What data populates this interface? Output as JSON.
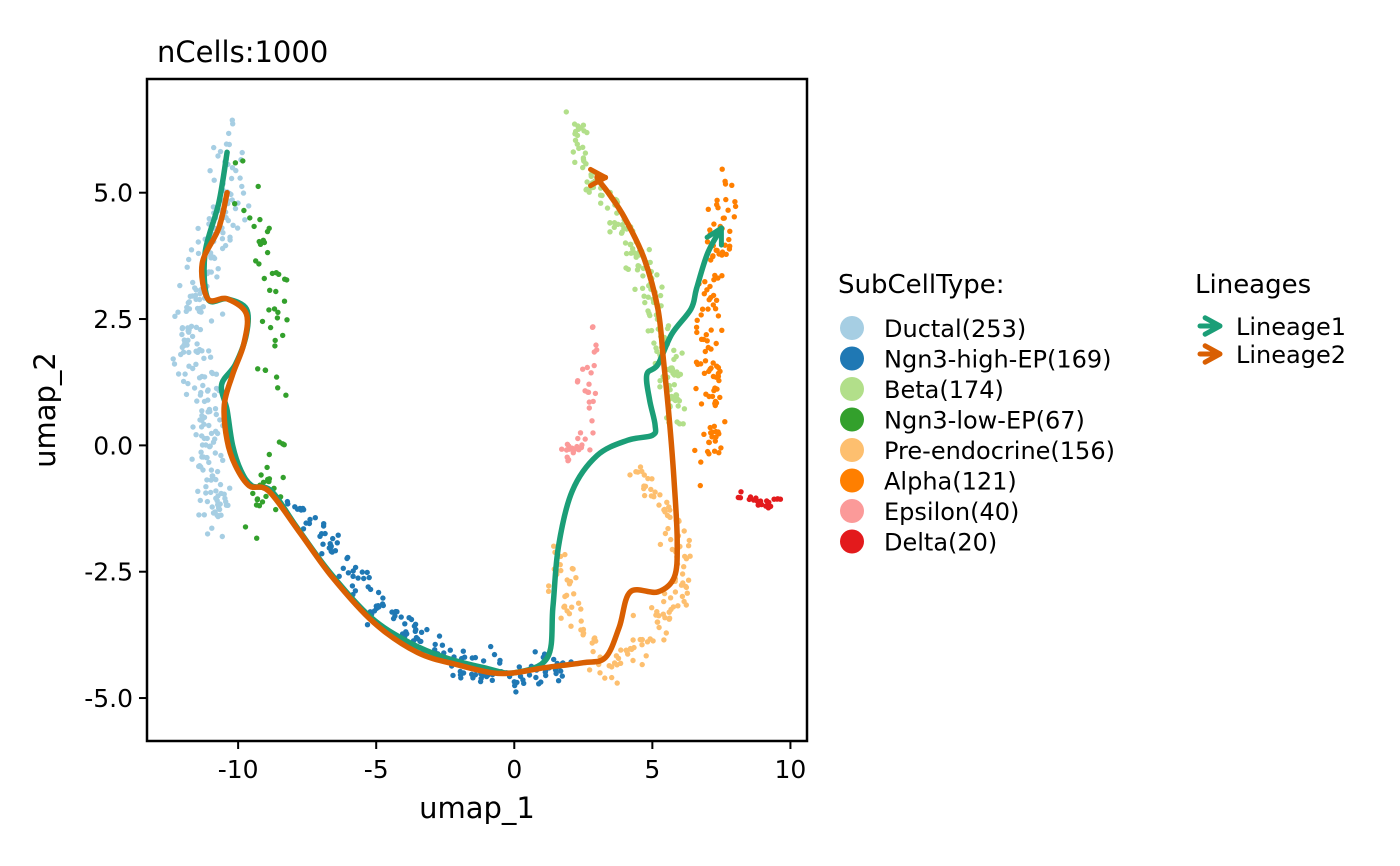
{
  "chart_data": {
    "type": "scatter",
    "title": "nCells:1000",
    "xlabel": "umap_1",
    "ylabel": "umap_2",
    "xlim": [
      -13.3,
      10.6
    ],
    "ylim": [
      -5.85,
      7.25
    ],
    "x_ticks": [
      -10,
      -5,
      0,
      5,
      10
    ],
    "x_tick_labels": [
      "-10",
      "-5",
      "0",
      "5",
      "10"
    ],
    "y_ticks": [
      -5,
      -2.5,
      0,
      2.5,
      5
    ],
    "y_tick_labels": [
      "-5.0",
      "-2.5",
      "0.0",
      "2.5",
      "5.0"
    ],
    "grid": false,
    "legend_position": "right",
    "legends": [
      {
        "title": "SubCellType:",
        "entries": [
          {
            "label": "Ductal(253)",
            "color": "#a6cee3"
          },
          {
            "label": "Ngn3-high-EP(169)",
            "color": "#1f78b4"
          },
          {
            "label": "Beta(174)",
            "color": "#b2df8a"
          },
          {
            "label": "Ngn3-low-EP(67)",
            "color": "#33a02c"
          },
          {
            "label": "Pre-endocrine(156)",
            "color": "#fdbf6f"
          },
          {
            "label": "Alpha(121)",
            "color": "#ff7f00"
          },
          {
            "label": "Epsilon(40)",
            "color": "#fb9a99"
          },
          {
            "label": "Delta(20)",
            "color": "#e31a1c"
          }
        ]
      },
      {
        "title": "Lineages",
        "entries": [
          {
            "label": "Lineage1",
            "color": "#1b9e77"
          },
          {
            "label": "Lineage2",
            "color": "#d95f02"
          }
        ]
      }
    ],
    "clusters": [
      {
        "name": "Ductal",
        "color": "#a6cee3",
        "count": 253,
        "path": [
          [
            -10.5,
            6.0
          ],
          [
            -10.3,
            4.8
          ],
          [
            -11.0,
            3.8
          ],
          [
            -11.8,
            2.4
          ],
          [
            -11.2,
            1.0
          ],
          [
            -11.0,
            -0.6
          ],
          [
            -10.6,
            -1.6
          ]
        ],
        "spread": [
          0.55,
          0.55
        ]
      },
      {
        "name": "Ngn3-high-EP",
        "color": "#1f78b4",
        "count": 169,
        "path": [
          [
            -8.0,
            -1.2
          ],
          [
            -6.5,
            -2.0
          ],
          [
            -5.0,
            -3.1
          ],
          [
            -3.5,
            -3.8
          ],
          [
            -2.0,
            -4.3
          ],
          [
            -0.8,
            -4.5
          ],
          [
            0.0,
            -4.6
          ],
          [
            1.0,
            -4.5
          ],
          [
            1.8,
            -4.3
          ]
        ],
        "spread": [
          0.35,
          0.28
        ]
      },
      {
        "name": "Beta",
        "color": "#b2df8a",
        "count": 174,
        "path": [
          [
            2.2,
            6.4
          ],
          [
            2.6,
            5.4
          ],
          [
            3.6,
            4.6
          ],
          [
            4.6,
            3.6
          ],
          [
            5.2,
            2.6
          ],
          [
            5.6,
            1.6
          ],
          [
            5.8,
            0.6
          ]
        ],
        "spread": [
          0.35,
          0.35
        ]
      },
      {
        "name": "Ngn3-low-EP",
        "color": "#33a02c",
        "count": 67,
        "path": [
          [
            -10.0,
            5.5
          ],
          [
            -9.2,
            4.2
          ],
          [
            -8.6,
            3.0
          ],
          [
            -8.8,
            1.2
          ],
          [
            -8.7,
            0.2
          ],
          [
            -9.0,
            -1.0
          ],
          [
            -9.8,
            -1.6
          ]
        ],
        "spread": [
          0.5,
          0.4
        ]
      },
      {
        "name": "Pre-endocrine",
        "color": "#fdbf6f",
        "count": 156,
        "path": [
          [
            4.4,
            -0.4
          ],
          [
            5.5,
            -1.3
          ],
          [
            6.1,
            -2.2
          ],
          [
            5.8,
            -3.2
          ],
          [
            4.6,
            -3.9
          ],
          [
            3.4,
            -4.5
          ],
          [
            2.2,
            -3.4
          ],
          [
            1.6,
            -2.1
          ]
        ],
        "spread": [
          0.45,
          0.35
        ]
      },
      {
        "name": "Alpha",
        "color": "#ff7f00",
        "count": 121,
        "path": [
          [
            7.8,
            5.2
          ],
          [
            7.5,
            4.2
          ],
          [
            7.0,
            3.0
          ],
          [
            7.0,
            2.0
          ],
          [
            7.2,
            0.8
          ],
          [
            7.0,
            -0.5
          ]
        ],
        "spread": [
          0.45,
          0.3
        ]
      },
      {
        "name": "Epsilon",
        "color": "#fb9a99",
        "count": 40,
        "path": [
          [
            3.0,
            2.6
          ],
          [
            2.6,
            1.4
          ],
          [
            2.8,
            0.4
          ],
          [
            1.9,
            -0.2
          ]
        ],
        "spread": [
          0.3,
          0.3
        ]
      },
      {
        "name": "Delta",
        "color": "#e31a1c",
        "count": 20,
        "path": [
          [
            8.2,
            -0.9
          ],
          [
            8.8,
            -1.1
          ],
          [
            9.5,
            -1.1
          ]
        ],
        "spread": [
          0.25,
          0.1
        ]
      }
    ],
    "lineages": [
      {
        "name": "Lineage1",
        "color": "#1b9e77",
        "curve": [
          [
            -10.4,
            5.8
          ],
          [
            -10.7,
            4.8
          ],
          [
            -11.2,
            3.8
          ],
          [
            -11.1,
            2.9
          ],
          [
            -10.4,
            2.9
          ],
          [
            -9.7,
            2.7
          ],
          [
            -9.7,
            2.2
          ],
          [
            -10.1,
            1.6
          ],
          [
            -10.6,
            1.2
          ],
          [
            -10.4,
            0.7
          ],
          [
            -10.2,
            0.0
          ],
          [
            -9.9,
            -0.5
          ],
          [
            -9.5,
            -0.8
          ],
          [
            -8.8,
            -0.9
          ],
          [
            -7.9,
            -1.6
          ],
          [
            -6.7,
            -2.5
          ],
          [
            -5.2,
            -3.4
          ],
          [
            -3.8,
            -3.9
          ],
          [
            -2.5,
            -4.2
          ],
          [
            -1.1,
            -4.4
          ],
          [
            0.0,
            -4.5
          ],
          [
            1.2,
            -4.2
          ],
          [
            1.4,
            -3.2
          ],
          [
            1.6,
            -2.0
          ],
          [
            2.1,
            -0.9
          ],
          [
            3.0,
            -0.2
          ],
          [
            4.1,
            0.1
          ],
          [
            5.0,
            0.2
          ],
          [
            5.1,
            0.4
          ],
          [
            4.9,
            0.9
          ],
          [
            4.8,
            1.4
          ],
          [
            5.2,
            1.6
          ],
          [
            5.7,
            2.2
          ],
          [
            6.4,
            2.7
          ],
          [
            6.6,
            3.1
          ],
          [
            7.0,
            3.8
          ],
          [
            7.5,
            4.3
          ]
        ]
      },
      {
        "name": "Lineage2",
        "color": "#d95f02",
        "curve": [
          [
            -10.4,
            5.0
          ],
          [
            -10.7,
            4.3
          ],
          [
            -11.3,
            3.6
          ],
          [
            -11.1,
            2.9
          ],
          [
            -10.4,
            2.9
          ],
          [
            -9.7,
            2.6
          ],
          [
            -9.8,
            2.0
          ],
          [
            -10.2,
            1.4
          ],
          [
            -10.5,
            0.8
          ],
          [
            -10.4,
            0.1
          ],
          [
            -10.1,
            -0.4
          ],
          [
            -9.6,
            -0.8
          ],
          [
            -8.9,
            -0.9
          ],
          [
            -7.8,
            -1.7
          ],
          [
            -6.6,
            -2.6
          ],
          [
            -5.1,
            -3.5
          ],
          [
            -3.5,
            -4.1
          ],
          [
            -2.0,
            -4.35
          ],
          [
            -0.8,
            -4.5
          ],
          [
            0.0,
            -4.5
          ],
          [
            1.1,
            -4.4
          ],
          [
            2.5,
            -4.3
          ],
          [
            3.3,
            -4.2
          ],
          [
            3.8,
            -3.6
          ],
          [
            4.2,
            -2.9
          ],
          [
            5.2,
            -2.9
          ],
          [
            5.8,
            -2.6
          ],
          [
            5.9,
            -1.9
          ],
          [
            5.8,
            -0.8
          ],
          [
            5.6,
            0.6
          ],
          [
            5.4,
            1.7
          ],
          [
            5.2,
            2.7
          ],
          [
            4.7,
            3.7
          ],
          [
            4.0,
            4.5
          ],
          [
            3.4,
            5.0
          ],
          [
            3.0,
            5.3
          ],
          [
            3.3,
            5.3
          ]
        ]
      }
    ]
  }
}
